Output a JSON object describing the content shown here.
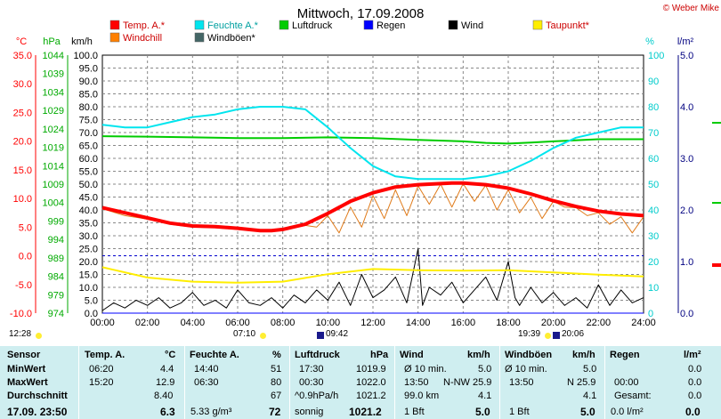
{
  "chart_data": {
    "type": "line",
    "title": "Mittwoch, 17.09.2008",
    "copyright": "© Weber Mike",
    "x_ticks": [
      "00:00",
      "02:00",
      "04:00",
      "06:00",
      "08:00",
      "10:00",
      "12:00",
      "14:00",
      "16:00",
      "18:00",
      "20:00",
      "22:00",
      "24:00"
    ],
    "axes": {
      "temp": {
        "unit": "°C",
        "ticks": [
          "35.0",
          "30.0",
          "25.0",
          "20.0",
          "15.0",
          "10.0",
          "5.0",
          "0.0",
          "-5.0",
          "-10.0"
        ],
        "range": [
          -10,
          35
        ],
        "color": "#ff0000"
      },
      "pressure": {
        "unit": "hPa",
        "ticks": [
          "1044",
          "1039",
          "1034",
          "1029",
          "1024",
          "1019",
          "1014",
          "1009",
          "1004",
          "999",
          "994",
          "989",
          "984",
          "979",
          "974"
        ],
        "range": [
          974,
          1044
        ],
        "color": "#00aa00"
      },
      "wind": {
        "unit": "km/h",
        "ticks": [
          "100.0",
          "95.0",
          "90.0",
          "85.0",
          "80.0",
          "75.0",
          "70.0",
          "65.0",
          "60.0",
          "55.0",
          "50.0",
          "45.0",
          "40.0",
          "35.0",
          "30.0",
          "25.0",
          "20.0",
          "15.0",
          "10.0",
          "5.0",
          "0.0"
        ],
        "range": [
          0,
          100
        ],
        "color": "#000000"
      },
      "humidity": {
        "unit": "%",
        "ticks": [
          "100",
          "90",
          "80",
          "70",
          "60",
          "50",
          "40",
          "30",
          "20",
          "10",
          "0"
        ],
        "range": [
          0,
          100
        ],
        "color": "#00cccc"
      },
      "rain": {
        "unit": "l/m²",
        "ticks": [
          "5.0",
          "4.0",
          "3.0",
          "2.0",
          "1.0",
          "0.0"
        ],
        "range": [
          0,
          5
        ],
        "color": "#000080"
      }
    },
    "legend": [
      {
        "name": "Temp. A.*",
        "color": "#ff0000"
      },
      {
        "name": "Feuchte A.*",
        "color": "#00e5ee"
      },
      {
        "name": "Luftdruck",
        "color": "#00cc00"
      },
      {
        "name": "Regen",
        "color": "#0000ff"
      },
      {
        "name": "Wind",
        "color": "#000000"
      },
      {
        "name": "Taupunkt*",
        "color": "#ffee00"
      },
      {
        "name": "Windchill",
        "color": "#ff8000"
      },
      {
        "name": "Windböen*",
        "color": "#446666"
      }
    ],
    "series": [
      {
        "name": "Temp. A.*",
        "axis": "temp",
        "x": [
          0,
          1,
          2,
          3,
          4,
          5,
          6,
          7,
          7.5,
          8,
          9,
          10,
          11,
          12,
          13,
          14,
          15,
          15.5,
          16,
          17,
          18,
          19,
          20,
          21,
          22,
          23,
          24
        ],
        "values": [
          8.4,
          7.5,
          6.6,
          5.7,
          5.2,
          5.1,
          4.8,
          4.4,
          4.4,
          4.6,
          5.5,
          7.4,
          9.5,
          11.0,
          12.0,
          12.4,
          12.6,
          12.7,
          12.7,
          12.4,
          11.8,
          10.8,
          9.6,
          8.6,
          7.8,
          7.3,
          7.0
        ]
      },
      {
        "name": "Windchill",
        "axis": "temp",
        "x": [
          0,
          1,
          2,
          3,
          4,
          5,
          6,
          7,
          7.5,
          8,
          9,
          9.5,
          10,
          10.5,
          11,
          11.5,
          12,
          12.5,
          13,
          13.5,
          14,
          14.5,
          15,
          15.5,
          16,
          16.5,
          17,
          17.5,
          18,
          18.5,
          19,
          19.5,
          20,
          20.5,
          21,
          21.5,
          22,
          22.5,
          23,
          23.5,
          24
        ],
        "values": [
          8.2,
          7.0,
          6.4,
          5.5,
          5.0,
          4.9,
          4.6,
          4.3,
          4.3,
          4.5,
          5.3,
          5.0,
          7.0,
          4.0,
          8.5,
          5.0,
          10.5,
          6.5,
          11.5,
          7.0,
          12.2,
          9.0,
          12.5,
          8.5,
          12.6,
          9.5,
          12.3,
          8.0,
          11.5,
          7.5,
          10.2,
          6.5,
          9.5,
          8.5,
          8.4,
          7.0,
          7.5,
          5.5,
          6.8,
          4.0,
          6.8
        ]
      },
      {
        "name": "Taupunkt*",
        "axis": "temp",
        "x": [
          0,
          2,
          4,
          6,
          8,
          10,
          12,
          14,
          16,
          18,
          20,
          22,
          24
        ],
        "values": [
          -2.0,
          -3.8,
          -4.5,
          -4.7,
          -4.5,
          -3.2,
          -2.3,
          -2.5,
          -2.6,
          -2.5,
          -2.9,
          -3.3,
          -3.6
        ]
      },
      {
        "name": "Feuchte A.*",
        "axis": "humidity",
        "x": [
          0,
          1,
          2,
          3,
          4,
          5,
          6,
          7,
          8,
          9,
          10,
          11,
          12,
          13,
          14,
          15,
          16,
          17,
          18,
          19,
          20,
          21,
          22,
          23,
          24
        ],
        "values": [
          73,
          72,
          72,
          74,
          76,
          77,
          79,
          80,
          80,
          79,
          72,
          64,
          57,
          53,
          52,
          52,
          52,
          53,
          55,
          59,
          64,
          68,
          70,
          72,
          72
        ]
      },
      {
        "name": "Luftdruck",
        "axis": "pressure",
        "x": [
          0,
          2,
          4,
          6,
          8,
          10,
          12,
          14,
          16,
          17,
          18,
          19,
          20,
          22,
          24
        ],
        "values": [
          1022.0,
          1021.9,
          1021.7,
          1021.5,
          1021.5,
          1021.7,
          1021.5,
          1021.0,
          1020.6,
          1020.2,
          1020.0,
          1020.3,
          1020.6,
          1021.2,
          1021.2
        ]
      },
      {
        "name": "Regen",
        "axis": "rain",
        "x": [
          0,
          24
        ],
        "values": [
          0.0,
          0.0
        ]
      },
      {
        "name": "Wind",
        "axis": "wind",
        "x": [
          0,
          0.5,
          1,
          1.5,
          2,
          2.5,
          3,
          3.5,
          4,
          4.5,
          5,
          5.5,
          6,
          6.5,
          7,
          7.5,
          8,
          8.5,
          9,
          9.5,
          10,
          10.5,
          11,
          11.5,
          12,
          12.5,
          13,
          13.5,
          14,
          14.2,
          14.5,
          15,
          15.5,
          16,
          16.5,
          17,
          17.5,
          18,
          18.3,
          18.5,
          19,
          19.5,
          20,
          20.5,
          21,
          21.5,
          22,
          22.5,
          23,
          23.5,
          24
        ],
        "values": [
          1,
          4,
          2,
          5,
          3,
          6,
          2,
          4,
          8,
          3,
          5,
          2,
          9,
          4,
          3,
          6,
          2,
          7,
          4,
          9,
          5,
          12,
          3,
          15,
          6,
          9,
          14,
          4,
          25,
          3,
          10,
          7,
          12,
          4,
          9,
          14,
          5,
          20,
          6,
          3,
          10,
          4,
          8,
          3,
          6,
          2,
          11,
          3,
          9,
          4,
          6
        ]
      },
      {
        "name": "Windböen*",
        "axis": "wind",
        "x": [
          0,
          24
        ],
        "values": [
          0,
          0
        ]
      }
    ],
    "ref_line": {
      "axis": "temp",
      "value": 0.0,
      "color": "#0000cc"
    }
  },
  "status_bar": {
    "sunrise": "12:28",
    "t1": "07:10",
    "t2": "09:42",
    "t3": "19:39",
    "t4": "20:06"
  },
  "table": {
    "sensor": {
      "head": "Sensor",
      "rows": [
        "MinWert",
        "MaxWert",
        "Durchschnitt",
        "17.09. 23:50"
      ]
    },
    "temp": {
      "head": "Temp. A.",
      "unit": "°C",
      "rows": [
        [
          "06:20",
          "4.4"
        ],
        [
          "15:20",
          "12.9"
        ],
        [
          "",
          "8.40"
        ],
        [
          "",
          "6.3"
        ]
      ]
    },
    "hum": {
      "head": "Feuchte A.",
      "unit": "%",
      "rows": [
        [
          "14:40",
          "51"
        ],
        [
          "06:30",
          "80"
        ],
        [
          "",
          "67"
        ],
        [
          "5.33 g/m³",
          "72"
        ]
      ]
    },
    "press": {
      "head": "Luftdruck",
      "unit": "hPa",
      "rows": [
        [
          "17:30",
          "1019.9"
        ],
        [
          "00:30",
          "1022.0"
        ],
        [
          "^0.9hPa/h",
          "1021.2"
        ],
        [
          "sonnig",
          "1021.2"
        ]
      ]
    },
    "wind": {
      "head": "Wind",
      "unit": "km/h",
      "rows": [
        [
          "Ø 10 min.",
          "",
          "5.0"
        ],
        [
          "13:50",
          "N-NW 25.9",
          ""
        ],
        [
          "99.0 km",
          "",
          "4.1"
        ],
        [
          "1 Bft",
          "",
          "5.0"
        ]
      ]
    },
    "gust": {
      "head": "Windböen",
      "unit": "km/h",
      "rows": [
        [
          "Ø 10 min.",
          "5.0"
        ],
        [
          "13:50",
          "N 25.9"
        ],
        [
          "",
          "4.1"
        ],
        [
          "1 Bft",
          "5.0"
        ]
      ]
    },
    "rain": {
      "head": "Regen",
      "unit": "l/m²",
      "rows": [
        [
          "",
          "0.0"
        ],
        [
          "00:00",
          "0.0"
        ],
        [
          "Gesamt:",
          "0.0"
        ],
        [
          "0.0 l/m²",
          "0.0"
        ]
      ]
    }
  }
}
